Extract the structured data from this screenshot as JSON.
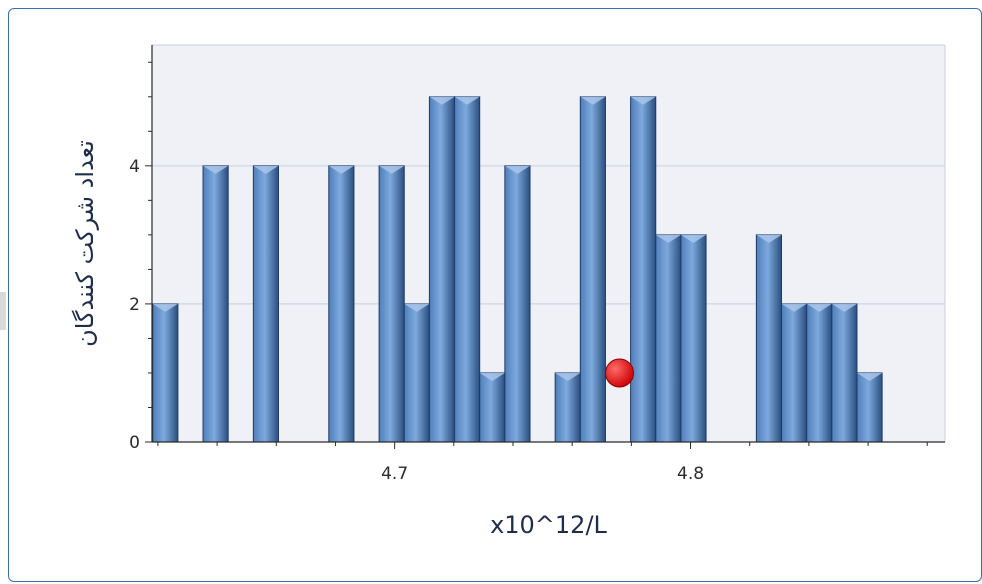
{
  "colors": {
    "bar_light": "#7ea9dd",
    "bar_mid": "#4f7fba",
    "bar_dark": "#2a4f80",
    "plot_bg": "#eff1f6",
    "grid": "#c9cfdc",
    "marker": "#cc0000",
    "frame": "#3a6fb0"
  },
  "chart_data": {
    "type": "bar",
    "xlabel": "x10^12/L",
    "ylabel": "تعداد شرکت کنندگان",
    "xlim": [
      4.618,
      4.886
    ],
    "ylim": [
      0,
      5.75
    ],
    "grid": true,
    "x_ticks": [
      4.7,
      4.8
    ],
    "y_ticks": [
      0,
      2,
      4
    ],
    "bin_width": 0.0085,
    "bars": [
      {
        "x": 4.6225,
        "value": 2
      },
      {
        "x": 4.6395,
        "value": 4
      },
      {
        "x": 4.6565,
        "value": 4
      },
      {
        "x": 4.682,
        "value": 4
      },
      {
        "x": 4.699,
        "value": 4
      },
      {
        "x": 4.7075,
        "value": 2
      },
      {
        "x": 4.716,
        "value": 5
      },
      {
        "x": 4.7245,
        "value": 5
      },
      {
        "x": 4.733,
        "value": 1
      },
      {
        "x": 4.7415,
        "value": 4
      },
      {
        "x": 4.7585,
        "value": 1
      },
      {
        "x": 4.767,
        "value": 5
      },
      {
        "x": 4.784,
        "value": 5
      },
      {
        "x": 4.7925,
        "value": 3
      },
      {
        "x": 4.801,
        "value": 3
      },
      {
        "x": 4.8265,
        "value": 3
      },
      {
        "x": 4.835,
        "value": 2
      },
      {
        "x": 4.8435,
        "value": 2
      },
      {
        "x": 4.852,
        "value": 2
      },
      {
        "x": 4.8605,
        "value": 1
      }
    ],
    "marker": {
      "x": 4.776,
      "y": 1
    }
  }
}
